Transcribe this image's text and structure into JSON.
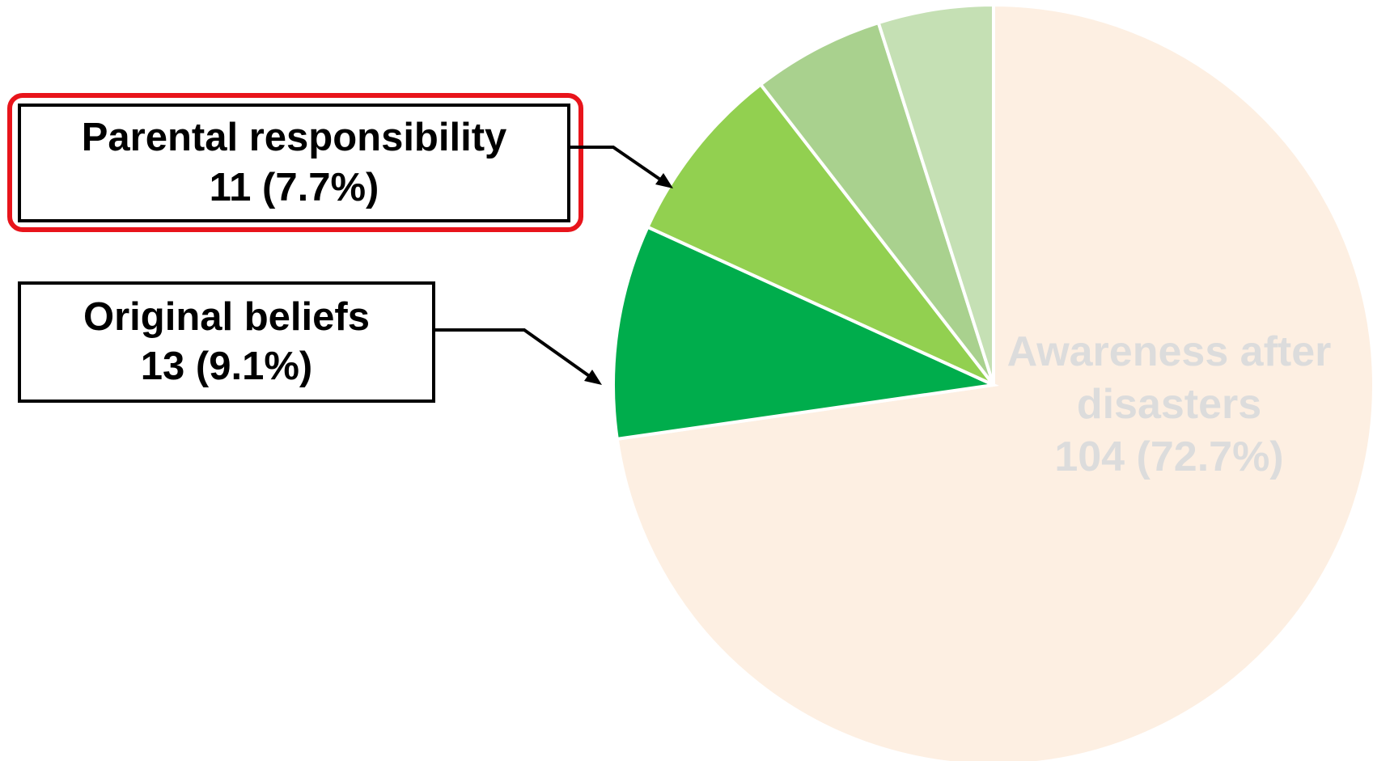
{
  "chart_data": {
    "type": "pie",
    "categories": [
      "Awareness after disasters",
      "Original beliefs",
      "Parental responsibility",
      null,
      null
    ],
    "values": [
      104,
      13,
      11,
      8,
      7
    ],
    "value_labels": [
      "104 (72.7%)",
      "13 (9.1%)",
      "11 (7.7%)",
      null,
      null
    ],
    "colors": [
      "#fdefe2",
      "#00ad4c",
      "#92d050",
      "#a9d18e",
      "#c5e0b4"
    ]
  }
}
